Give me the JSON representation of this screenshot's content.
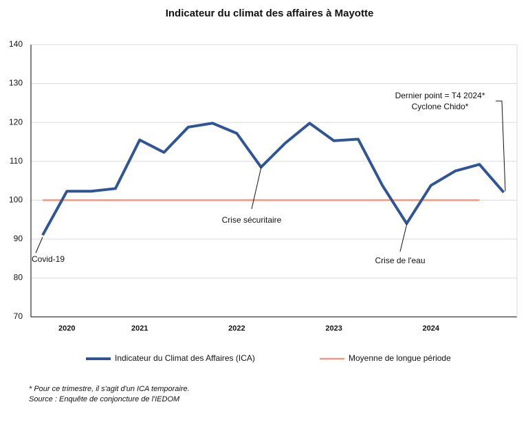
{
  "chart_data": {
    "type": "line",
    "title": "Indicateur du climat des affaires à Mayotte",
    "categories": [
      null,
      "2020",
      null,
      null,
      "2021",
      null,
      null,
      null,
      "2022",
      null,
      null,
      null,
      "2023",
      null,
      null,
      null,
      "2024",
      null,
      null,
      null
    ],
    "series": [
      {
        "name": "Indicateur du Climat des Affaires (ICA)",
        "color": "#2f5597",
        "values": [
          91,
          102.3,
          102.3,
          103,
          115.5,
          112.3,
          118.8,
          119.8,
          117.2,
          108.5,
          114.7,
          119.8,
          115.3,
          115.7,
          103.8,
          94,
          103.8,
          107.5,
          109.2,
          102
        ]
      },
      {
        "name": "Moyenne de longue période",
        "color": "#ec9a84",
        "values": [
          100,
          100,
          100,
          100,
          100,
          100,
          100,
          100,
          100,
          100,
          100,
          100,
          100,
          100,
          100,
          100,
          100,
          100,
          100,
          null
        ]
      }
    ],
    "ylim": [
      70,
      140
    ],
    "yticks": [
      70,
      80,
      90,
      100,
      110,
      120,
      130,
      140
    ],
    "grid": true,
    "annotations": [
      "Covid-19",
      "Crise sécuritaire",
      "Crise de l'eau",
      "Dernier point = T4 2024*",
      "Cyclone Chido*"
    ],
    "footnotes": [
      "* Pour ce trimestre, il s'agit d'un ICA temporaire.",
      "Source : Enquête de conjoncture de l'IEDOM"
    ]
  }
}
